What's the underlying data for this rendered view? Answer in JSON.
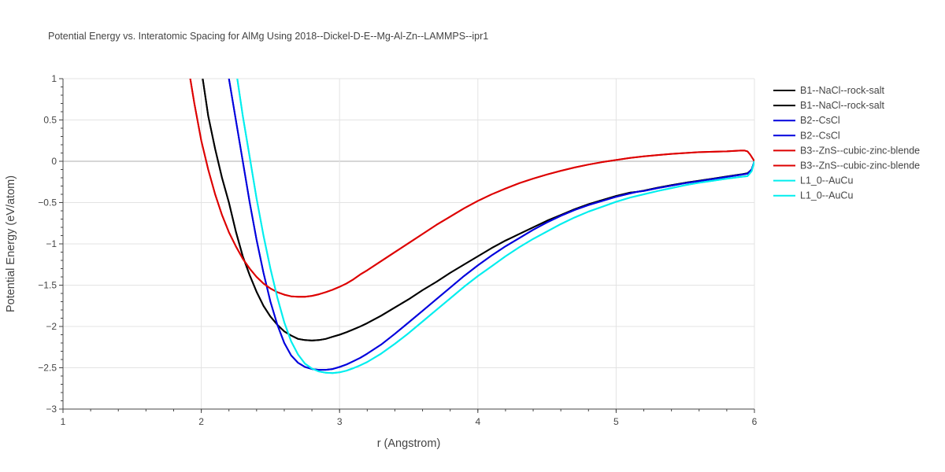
{
  "chart_data": {
    "type": "line",
    "title": "Potential Energy vs. Interatomic Spacing for AlMg Using 2018--Dickel-D-E--Mg-Al-Zn--LAMMPS--ipr1",
    "xlabel": "r (Angstrom)",
    "ylabel": "Potential Energy (eV/atom)",
    "xlim": [
      1,
      6
    ],
    "ylim": [
      -3,
      1
    ],
    "xticks": [
      "1",
      "2",
      "3",
      "4",
      "5",
      "6"
    ],
    "yticks": [
      "1",
      "0.5",
      "0",
      "−0.5",
      "−1",
      "−1.5",
      "−2",
      "−2.5",
      "−3"
    ],
    "grid": true,
    "legend_position": "right",
    "series": [
      {
        "name": "B1--NaCl--rock-salt",
        "color": "#000000",
        "x": [
          2.01,
          2.05,
          2.1,
          2.15,
          2.2,
          2.25,
          2.3,
          2.35,
          2.4,
          2.45,
          2.5,
          2.55,
          2.6,
          2.65,
          2.7,
          2.75,
          2.8,
          2.85,
          2.9,
          2.95,
          3.0,
          3.05,
          3.1,
          3.15,
          3.2,
          3.3,
          3.4,
          3.5,
          3.6,
          3.7,
          3.8,
          3.9,
          4.0,
          4.1,
          4.2,
          4.25,
          4.3,
          4.4,
          4.5,
          4.6,
          4.7,
          4.8,
          4.9,
          5.0,
          5.1,
          5.15,
          5.2,
          5.3,
          5.4,
          5.5,
          5.6,
          5.7,
          5.8,
          5.9,
          5.95,
          5.98,
          6.0
        ],
        "y": [
          1.0,
          0.55,
          0.15,
          -0.2,
          -0.5,
          -0.85,
          -1.15,
          -1.38,
          -1.58,
          -1.75,
          -1.88,
          -1.98,
          -2.06,
          -2.11,
          -2.15,
          -2.165,
          -2.17,
          -2.165,
          -2.15,
          -2.125,
          -2.1,
          -2.07,
          -2.035,
          -2.0,
          -1.96,
          -1.87,
          -1.77,
          -1.67,
          -1.56,
          -1.46,
          -1.35,
          -1.25,
          -1.15,
          -1.05,
          -0.96,
          -0.92,
          -0.88,
          -0.8,
          -0.72,
          -0.65,
          -0.58,
          -0.52,
          -0.47,
          -0.42,
          -0.38,
          -0.37,
          -0.355,
          -0.32,
          -0.29,
          -0.26,
          -0.235,
          -0.21,
          -0.185,
          -0.16,
          -0.145,
          -0.1,
          0.0
        ]
      },
      {
        "name": "B1--NaCl--rock-salt",
        "color": "#000000",
        "x": [
          2.01,
          2.05,
          2.1,
          2.15,
          2.2,
          2.25,
          2.3,
          2.35,
          2.4,
          2.45,
          2.5,
          2.55,
          2.6,
          2.65,
          2.7,
          2.75,
          2.8,
          2.85,
          2.9,
          2.95,
          3.0,
          3.05,
          3.1,
          3.15,
          3.2,
          3.3,
          3.4,
          3.5,
          3.6,
          3.7,
          3.8,
          3.9,
          4.0,
          4.1,
          4.2,
          4.25,
          4.3,
          4.4,
          4.5,
          4.6,
          4.7,
          4.8,
          4.9,
          5.0,
          5.1,
          5.15,
          5.2,
          5.3,
          5.4,
          5.5,
          5.6,
          5.7,
          5.8,
          5.9,
          5.95,
          5.98,
          6.0
        ],
        "y": [
          1.0,
          0.55,
          0.15,
          -0.2,
          -0.5,
          -0.85,
          -1.15,
          -1.38,
          -1.58,
          -1.75,
          -1.88,
          -1.98,
          -2.06,
          -2.11,
          -2.15,
          -2.165,
          -2.17,
          -2.165,
          -2.15,
          -2.125,
          -2.1,
          -2.07,
          -2.035,
          -2.0,
          -1.96,
          -1.87,
          -1.77,
          -1.67,
          -1.56,
          -1.46,
          -1.35,
          -1.25,
          -1.15,
          -1.05,
          -0.96,
          -0.92,
          -0.88,
          -0.8,
          -0.72,
          -0.65,
          -0.58,
          -0.52,
          -0.47,
          -0.42,
          -0.38,
          -0.37,
          -0.355,
          -0.32,
          -0.29,
          -0.26,
          -0.235,
          -0.21,
          -0.185,
          -0.16,
          -0.145,
          -0.1,
          0.0
        ]
      },
      {
        "name": "B2--CsCl",
        "color": "#0000dd",
        "x": [
          2.2,
          2.25,
          2.3,
          2.35,
          2.4,
          2.45,
          2.5,
          2.55,
          2.6,
          2.65,
          2.7,
          2.75,
          2.8,
          2.85,
          2.9,
          2.95,
          3.0,
          3.05,
          3.1,
          3.15,
          3.2,
          3.3,
          3.4,
          3.5,
          3.6,
          3.7,
          3.8,
          3.9,
          4.0,
          4.1,
          4.2,
          4.3,
          4.4,
          4.5,
          4.6,
          4.7,
          4.8,
          4.9,
          5.0,
          5.1,
          5.15,
          5.2,
          5.3,
          5.4,
          5.5,
          5.6,
          5.7,
          5.8,
          5.9,
          5.95,
          5.98,
          6.0
        ],
        "y": [
          1.0,
          0.5,
          0.0,
          -0.5,
          -0.95,
          -1.35,
          -1.7,
          -1.98,
          -2.2,
          -2.35,
          -2.44,
          -2.49,
          -2.515,
          -2.525,
          -2.525,
          -2.515,
          -2.49,
          -2.46,
          -2.42,
          -2.38,
          -2.33,
          -2.22,
          -2.09,
          -1.95,
          -1.81,
          -1.67,
          -1.53,
          -1.39,
          -1.26,
          -1.14,
          -1.03,
          -0.93,
          -0.83,
          -0.74,
          -0.66,
          -0.59,
          -0.53,
          -0.48,
          -0.43,
          -0.39,
          -0.37,
          -0.36,
          -0.325,
          -0.295,
          -0.265,
          -0.24,
          -0.215,
          -0.19,
          -0.165,
          -0.15,
          -0.1,
          0.0
        ]
      },
      {
        "name": "B2--CsCl",
        "color": "#0000dd",
        "x": [
          2.2,
          2.25,
          2.3,
          2.35,
          2.4,
          2.45,
          2.5,
          2.55,
          2.6,
          2.65,
          2.7,
          2.75,
          2.8,
          2.85,
          2.9,
          2.95,
          3.0,
          3.05,
          3.1,
          3.15,
          3.2,
          3.3,
          3.4,
          3.5,
          3.6,
          3.7,
          3.8,
          3.9,
          4.0,
          4.1,
          4.2,
          4.3,
          4.4,
          4.5,
          4.6,
          4.7,
          4.8,
          4.9,
          5.0,
          5.1,
          5.15,
          5.2,
          5.3,
          5.4,
          5.5,
          5.6,
          5.7,
          5.8,
          5.9,
          5.95,
          5.98,
          6.0
        ],
        "y": [
          1.0,
          0.5,
          0.0,
          -0.5,
          -0.95,
          -1.35,
          -1.7,
          -1.98,
          -2.2,
          -2.35,
          -2.44,
          -2.49,
          -2.515,
          -2.525,
          -2.525,
          -2.515,
          -2.49,
          -2.46,
          -2.42,
          -2.38,
          -2.33,
          -2.22,
          -2.09,
          -1.95,
          -1.81,
          -1.67,
          -1.53,
          -1.39,
          -1.26,
          -1.14,
          -1.03,
          -0.93,
          -0.83,
          -0.74,
          -0.66,
          -0.59,
          -0.53,
          -0.48,
          -0.43,
          -0.39,
          -0.37,
          -0.36,
          -0.325,
          -0.295,
          -0.265,
          -0.24,
          -0.215,
          -0.19,
          -0.165,
          -0.15,
          -0.1,
          0.0
        ]
      },
      {
        "name": "B3--ZnS--cubic-zinc-blende",
        "color": "#dd0000",
        "x": [
          1.92,
          1.95,
          2.0,
          2.05,
          2.1,
          2.15,
          2.2,
          2.25,
          2.3,
          2.35,
          2.4,
          2.45,
          2.5,
          2.55,
          2.6,
          2.65,
          2.7,
          2.75,
          2.8,
          2.85,
          2.9,
          2.95,
          3.0,
          3.05,
          3.1,
          3.15,
          3.2,
          3.3,
          3.4,
          3.5,
          3.6,
          3.7,
          3.8,
          3.9,
          4.0,
          4.1,
          4.2,
          4.3,
          4.4,
          4.5,
          4.6,
          4.7,
          4.8,
          4.9,
          5.0,
          5.1,
          5.2,
          5.3,
          5.4,
          5.5,
          5.6,
          5.7,
          5.8,
          5.85,
          5.9,
          5.93,
          5.95,
          5.97,
          6.0
        ],
        "y": [
          1.0,
          0.7,
          0.25,
          -0.1,
          -0.4,
          -0.65,
          -0.86,
          -1.03,
          -1.18,
          -1.3,
          -1.4,
          -1.48,
          -1.54,
          -1.585,
          -1.615,
          -1.635,
          -1.64,
          -1.64,
          -1.63,
          -1.61,
          -1.585,
          -1.555,
          -1.52,
          -1.48,
          -1.43,
          -1.37,
          -1.32,
          -1.21,
          -1.1,
          -0.99,
          -0.88,
          -0.77,
          -0.67,
          -0.57,
          -0.48,
          -0.4,
          -0.33,
          -0.265,
          -0.21,
          -0.16,
          -0.115,
          -0.075,
          -0.04,
          -0.01,
          0.015,
          0.04,
          0.06,
          0.075,
          0.09,
          0.1,
          0.11,
          0.115,
          0.12,
          0.125,
          0.13,
          0.13,
          0.12,
          0.08,
          0.0
        ]
      },
      {
        "name": "B3--ZnS--cubic-zinc-blende",
        "color": "#dd0000",
        "x": [
          1.92,
          1.95,
          2.0,
          2.05,
          2.1,
          2.15,
          2.2,
          2.25,
          2.3,
          2.35,
          2.4,
          2.45,
          2.5,
          2.55,
          2.6,
          2.65,
          2.7,
          2.75,
          2.8,
          2.85,
          2.9,
          2.95,
          3.0,
          3.05,
          3.1,
          3.15,
          3.2,
          3.3,
          3.4,
          3.5,
          3.6,
          3.7,
          3.8,
          3.9,
          4.0,
          4.1,
          4.2,
          4.3,
          4.4,
          4.5,
          4.6,
          4.7,
          4.8,
          4.9,
          5.0,
          5.1,
          5.2,
          5.3,
          5.4,
          5.5,
          5.6,
          5.7,
          5.8,
          5.85,
          5.9,
          5.93,
          5.95,
          5.97,
          6.0
        ],
        "y": [
          1.0,
          0.7,
          0.25,
          -0.1,
          -0.4,
          -0.65,
          -0.86,
          -1.03,
          -1.18,
          -1.3,
          -1.4,
          -1.48,
          -1.54,
          -1.585,
          -1.615,
          -1.635,
          -1.64,
          -1.64,
          -1.63,
          -1.61,
          -1.585,
          -1.555,
          -1.52,
          -1.48,
          -1.43,
          -1.37,
          -1.32,
          -1.21,
          -1.1,
          -0.99,
          -0.88,
          -0.77,
          -0.67,
          -0.57,
          -0.48,
          -0.4,
          -0.33,
          -0.265,
          -0.21,
          -0.16,
          -0.115,
          -0.075,
          -0.04,
          -0.01,
          0.015,
          0.04,
          0.06,
          0.075,
          0.09,
          0.1,
          0.11,
          0.115,
          0.12,
          0.125,
          0.13,
          0.13,
          0.12,
          0.08,
          0.0
        ]
      },
      {
        "name": "L1_0--AuCu",
        "color": "#00eeee",
        "x": [
          2.26,
          2.3,
          2.35,
          2.4,
          2.45,
          2.5,
          2.55,
          2.6,
          2.65,
          2.7,
          2.75,
          2.8,
          2.85,
          2.9,
          2.95,
          3.0,
          3.05,
          3.1,
          3.15,
          3.2,
          3.3,
          3.4,
          3.5,
          3.6,
          3.7,
          3.8,
          3.9,
          4.0,
          4.1,
          4.2,
          4.3,
          4.4,
          4.5,
          4.6,
          4.7,
          4.8,
          4.9,
          5.0,
          5.1,
          5.2,
          5.3,
          5.4,
          5.5,
          5.6,
          5.7,
          5.8,
          5.9,
          5.95,
          5.98,
          6.0
        ],
        "y": [
          1.0,
          0.55,
          0.05,
          -0.45,
          -0.9,
          -1.3,
          -1.65,
          -1.95,
          -2.18,
          -2.34,
          -2.45,
          -2.51,
          -2.545,
          -2.56,
          -2.565,
          -2.555,
          -2.535,
          -2.505,
          -2.47,
          -2.43,
          -2.33,
          -2.21,
          -2.08,
          -1.94,
          -1.8,
          -1.66,
          -1.52,
          -1.39,
          -1.27,
          -1.15,
          -1.04,
          -0.94,
          -0.85,
          -0.76,
          -0.68,
          -0.61,
          -0.55,
          -0.49,
          -0.44,
          -0.4,
          -0.36,
          -0.325,
          -0.29,
          -0.26,
          -0.235,
          -0.21,
          -0.19,
          -0.18,
          -0.12,
          0.0
        ]
      },
      {
        "name": "L1_0--AuCu",
        "color": "#00eeee",
        "x": [
          2.26,
          2.3,
          2.35,
          2.4,
          2.45,
          2.5,
          2.55,
          2.6,
          2.65,
          2.7,
          2.75,
          2.8,
          2.85,
          2.9,
          2.95,
          3.0,
          3.05,
          3.1,
          3.15,
          3.2,
          3.3,
          3.4,
          3.5,
          3.6,
          3.7,
          3.8,
          3.9,
          4.0,
          4.1,
          4.2,
          4.3,
          4.4,
          4.5,
          4.6,
          4.7,
          4.8,
          4.9,
          5.0,
          5.1,
          5.2,
          5.3,
          5.4,
          5.5,
          5.6,
          5.7,
          5.8,
          5.9,
          5.95,
          5.98,
          6.0
        ],
        "y": [
          1.0,
          0.55,
          0.05,
          -0.45,
          -0.9,
          -1.3,
          -1.65,
          -1.95,
          -2.18,
          -2.34,
          -2.45,
          -2.51,
          -2.545,
          -2.56,
          -2.565,
          -2.555,
          -2.535,
          -2.505,
          -2.47,
          -2.43,
          -2.33,
          -2.21,
          -2.08,
          -1.94,
          -1.8,
          -1.66,
          -1.52,
          -1.39,
          -1.27,
          -1.15,
          -1.04,
          -0.94,
          -0.85,
          -0.76,
          -0.68,
          -0.61,
          -0.55,
          -0.49,
          -0.44,
          -0.4,
          -0.36,
          -0.325,
          -0.29,
          -0.26,
          -0.235,
          -0.21,
          -0.19,
          -0.18,
          -0.12,
          0.0
        ]
      }
    ]
  }
}
